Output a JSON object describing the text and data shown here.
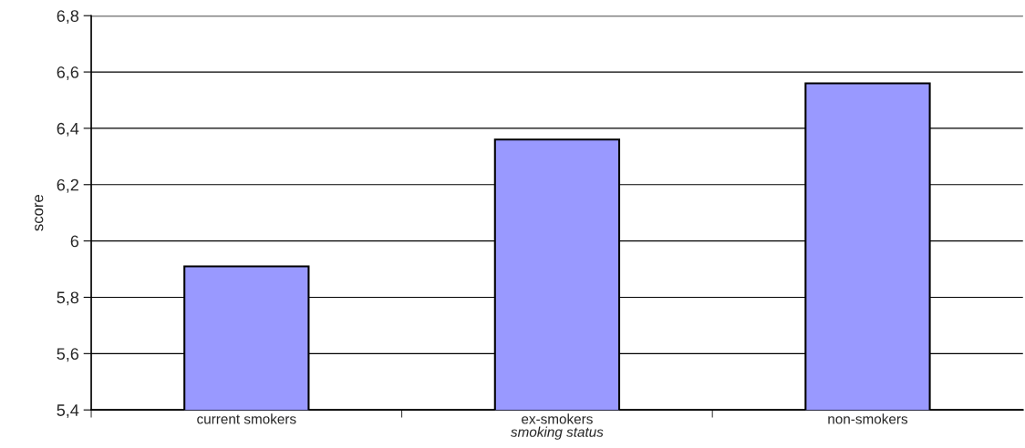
{
  "chart_data": {
    "type": "bar",
    "categories": [
      "current smokers",
      "ex-smokers",
      "non-smokers"
    ],
    "values": [
      5.91,
      6.36,
      6.56
    ],
    "color": "#9999ff",
    "xlabel": "smoking status",
    "ylabel": "score",
    "ylim": [
      5.4,
      6.8
    ],
    "yticks": [
      {
        "value": 5.4,
        "label": "5,4"
      },
      {
        "value": 5.6,
        "label": "5,6"
      },
      {
        "value": 5.8,
        "label": "5,8"
      },
      {
        "value": 6,
        "label": "6"
      },
      {
        "value": 6.2,
        "label": "6,2"
      },
      {
        "value": 6.4,
        "label": "6,4"
      },
      {
        "value": 6.6,
        "label": "6,6"
      },
      {
        "value": 6.8,
        "label": "6,8"
      }
    ],
    "grid": "y",
    "legend": false
  }
}
